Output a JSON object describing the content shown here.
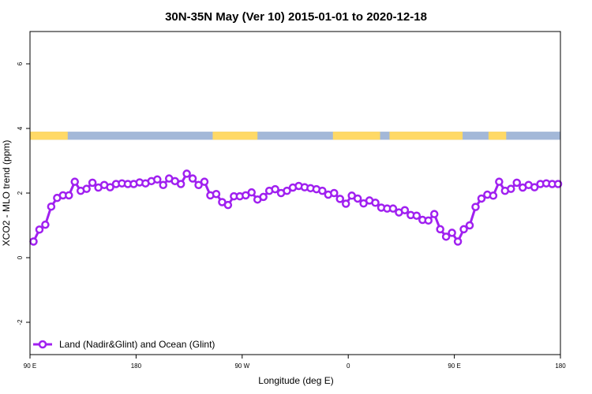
{
  "chart_data": {
    "type": "line",
    "title": "30N-35N May (Ver 10)   2015-01-01 to 2020-12-18",
    "xlabel": "Longitude (deg E)",
    "ylabel": "XCO2 - MLO trend (ppm)",
    "xlim": [
      90,
      540
    ],
    "ylim": [
      -3,
      7
    ],
    "x_ticks": [
      {
        "value": 90,
        "label": "90 E"
      },
      {
        "value": 180,
        "label": "180"
      },
      {
        "value": 270,
        "label": "90 W"
      },
      {
        "value": 360,
        "label": "0"
      },
      {
        "value": 450,
        "label": "90 E"
      },
      {
        "value": 540,
        "label": "180"
      }
    ],
    "y_ticks": [
      -2,
      0,
      2,
      4,
      6
    ],
    "grid": false,
    "legend_position": "bottom-left",
    "colors": {
      "series": "#a020f0",
      "land": "#ffd966",
      "ocean": "#a3b8d8"
    },
    "surface_band": {
      "y_range": [
        3.65,
        3.9
      ],
      "land_ranges": [
        [
          90,
          122
        ],
        [
          245,
          283
        ],
        [
          347,
          387
        ],
        [
          395,
          457
        ],
        [
          479,
          494
        ]
      ]
    },
    "series": [
      {
        "name": "Land (Nadir&Glint) and Ocean (Glint)",
        "x": [
          93,
          98,
          103,
          108,
          113,
          118,
          123,
          128,
          133,
          138,
          143,
          148,
          153,
          158,
          163,
          168,
          173,
          178,
          183,
          188,
          193,
          198,
          203,
          208,
          213,
          218,
          223,
          228,
          233,
          238,
          243,
          248,
          253,
          258,
          263,
          268,
          273,
          278,
          283,
          288,
          293,
          298,
          303,
          308,
          313,
          318,
          323,
          328,
          333,
          338,
          343,
          348,
          353,
          358,
          363,
          368,
          373,
          378,
          383,
          388,
          393,
          398,
          403,
          408,
          413,
          418,
          423,
          428,
          433,
          438,
          443,
          448,
          453,
          458,
          463,
          468,
          473,
          478,
          483,
          488,
          493,
          498,
          503,
          508,
          513,
          518,
          523,
          528,
          533,
          538
        ],
        "y": [
          0.5,
          0.87,
          1.02,
          1.58,
          1.85,
          1.93,
          1.93,
          2.35,
          2.07,
          2.13,
          2.32,
          2.17,
          2.25,
          2.18,
          2.28,
          2.3,
          2.28,
          2.28,
          2.33,
          2.3,
          2.37,
          2.42,
          2.25,
          2.45,
          2.37,
          2.28,
          2.6,
          2.45,
          2.25,
          2.35,
          1.93,
          1.97,
          1.72,
          1.63,
          1.9,
          1.9,
          1.93,
          2.02,
          1.8,
          1.88,
          2.07,
          2.12,
          2.0,
          2.07,
          2.17,
          2.22,
          2.18,
          2.15,
          2.12,
          2.07,
          1.95,
          2.0,
          1.82,
          1.67,
          1.92,
          1.83,
          1.68,
          1.77,
          1.7,
          1.55,
          1.52,
          1.52,
          1.4,
          1.47,
          1.32,
          1.3,
          1.17,
          1.15,
          1.35,
          0.88,
          0.65,
          0.77,
          0.5,
          0.88,
          1.0,
          1.57,
          1.83,
          1.95,
          1.92,
          2.35,
          2.07,
          2.13,
          2.32,
          2.17,
          2.25,
          2.18,
          2.28,
          2.3,
          2.28,
          2.28
        ]
      }
    ]
  }
}
